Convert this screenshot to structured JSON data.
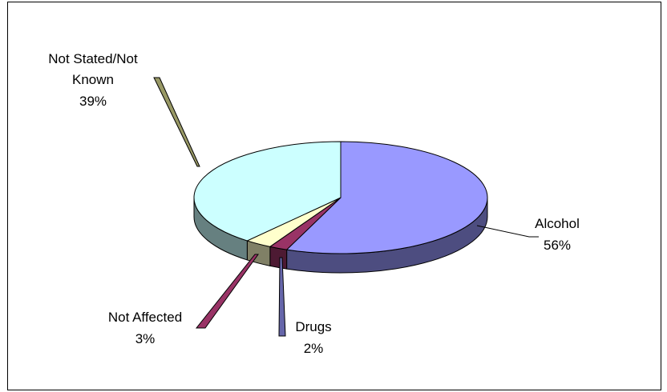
{
  "chart_data": {
    "type": "pie",
    "style": "3d-exploded",
    "title": "",
    "categories": [
      "Alcohol",
      "Drugs",
      "Not Affected",
      "Not Stated/Not Known"
    ],
    "values": [
      56,
      2,
      3,
      39
    ],
    "percent_labels": [
      "56%",
      "2%",
      "3%",
      "39%"
    ],
    "colors": {
      "Alcohol": "#9999ff",
      "Drugs": "#993366",
      "Not Affected": "#ffffcc",
      "Not Stated/Not Known": "#ccffff"
    },
    "legend": "none"
  },
  "labels": {
    "alcohol": {
      "name": "Alcohol",
      "pct": "56%"
    },
    "drugs": {
      "name": "Drugs",
      "pct": "2%"
    },
    "not_affected": {
      "name": "Not Affected",
      "pct": "3%"
    },
    "not_stated": {
      "name_line1": "Not Stated/Not",
      "name_line2": "Known",
      "pct": "39%"
    }
  }
}
